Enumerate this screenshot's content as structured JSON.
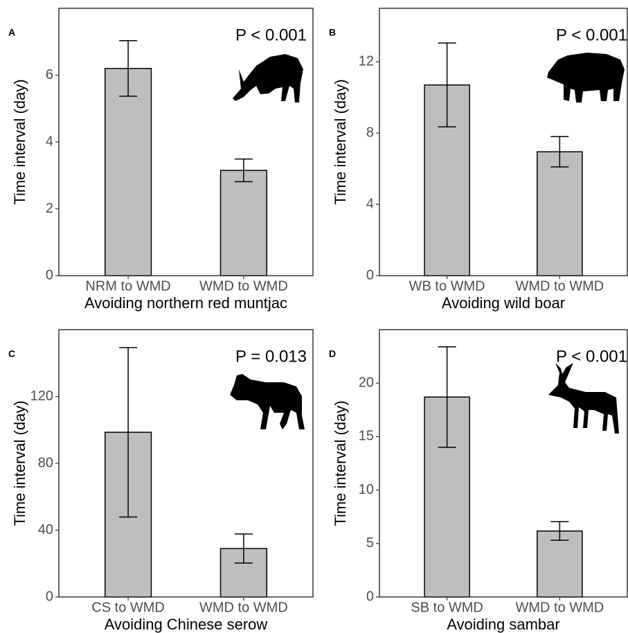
{
  "chart_data": [
    {
      "type": "bar",
      "panel_label": "A",
      "annotation": "P < 0.001",
      "categories": [
        "NRM to WMD",
        "WMD to WMD"
      ],
      "values": [
        6.2,
        3.15
      ],
      "errors": [
        0.83,
        0.34
      ],
      "color": "#bebebe",
      "xlabel": "Avoiding northern red muntjac",
      "ylabel": "Time interval (day)",
      "ylim": [
        0,
        8
      ],
      "yticks": [
        0,
        2,
        4,
        6
      ]
    },
    {
      "type": "bar",
      "panel_label": "B",
      "annotation": "P < 0.001",
      "categories": [
        "WB to WMD",
        "WMD to WMD"
      ],
      "values": [
        10.7,
        6.95
      ],
      "errors": [
        2.35,
        0.85
      ],
      "color": "#bebebe",
      "xlabel": "Avoiding wild boar",
      "ylabel": "Time interval (day)",
      "ylim": [
        0,
        15
      ],
      "yticks": [
        0,
        4,
        8,
        12
      ]
    },
    {
      "type": "bar",
      "panel_label": "C",
      "annotation": "P = 0.013",
      "categories": [
        "CS to WMD",
        "WMD to WMD"
      ],
      "values": [
        98.6,
        29
      ],
      "errors": [
        50.7,
        8.7
      ],
      "color": "#bebebe",
      "xlabel": "Avoiding Chinese serow",
      "ylabel": "Time interval (day)",
      "ylim": [
        0,
        160
      ],
      "yticks": [
        0,
        40,
        80,
        120
      ]
    },
    {
      "type": "bar",
      "panel_label": "D",
      "annotation": "P < 0.001",
      "categories": [
        "SB to WMD",
        "WMD to WMD"
      ],
      "values": [
        18.7,
        6.17
      ],
      "errors": [
        4.7,
        0.87
      ],
      "color": "#bebebe",
      "xlabel": "Avoiding sambar",
      "ylabel": "Time interval (day)",
      "ylim": [
        0,
        25
      ],
      "yticks": [
        0,
        5,
        10,
        15,
        20
      ]
    }
  ]
}
